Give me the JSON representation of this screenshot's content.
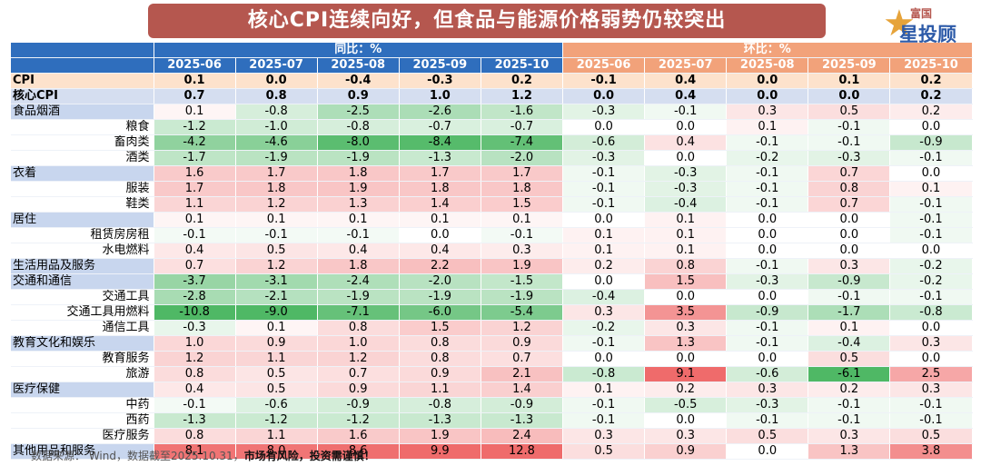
{
  "title": "核心CPI连续向好，但食品与能源价格弱势仍较突出",
  "logo": {
    "top": "富国",
    "bottom": "星投顾"
  },
  "footer": {
    "source": "数据来源： Wind，数据截至2025.10.31，",
    "warning": "市场有风险，投资需谨慎！"
  },
  "colors": {
    "title_bg": "#b5574f",
    "yoy_header": "#2f6ebd",
    "mom_header": "#f2a27a",
    "positive": "#ef6b6b",
    "negative": "#4fb865"
  },
  "chart_data": {
    "type": "table",
    "groups": [
      "同比：%",
      "环比：%"
    ],
    "columns": [
      "2025-06",
      "2025-07",
      "2025-08",
      "2025-09",
      "2025-10"
    ],
    "rows": [
      {
        "label": "CPI",
        "kind": "summary1",
        "yoy": [
          "0.1",
          "0.0",
          "-0.4",
          "-0.3",
          "0.2"
        ],
        "mom": [
          "-0.1",
          "0.4",
          "0.0",
          "0.1",
          "0.2"
        ]
      },
      {
        "label": "核心CPI",
        "kind": "summary2",
        "yoy": [
          "0.7",
          "0.8",
          "0.9",
          "1.0",
          "1.2"
        ],
        "mom": [
          "0.0",
          "0.4",
          "0.0",
          "0.0",
          "0.2"
        ]
      },
      {
        "label": "食品烟酒",
        "kind": "cat",
        "yoy": [
          "0.1",
          "-0.8",
          "-2.5",
          "-2.6",
          "-1.6"
        ],
        "mom": [
          "-0.3",
          "-0.1",
          "0.3",
          "0.5",
          "0.2"
        ]
      },
      {
        "label": "粮食",
        "kind": "sub",
        "yoy": [
          "-1.2",
          "-1.0",
          "-0.8",
          "-0.7",
          "-0.7"
        ],
        "mom": [
          "0.0",
          "0.0",
          "0.1",
          "-0.1",
          "0.0"
        ]
      },
      {
        "label": "畜肉类",
        "kind": "sub",
        "yoy": [
          "-4.2",
          "-4.6",
          "-8.0",
          "-8.4",
          "-7.4"
        ],
        "mom": [
          "-0.6",
          "0.4",
          "-0.1",
          "-0.1",
          "-0.9"
        ]
      },
      {
        "label": "酒类",
        "kind": "sub",
        "yoy": [
          "-1.7",
          "-1.9",
          "-1.9",
          "-1.3",
          "-2.0"
        ],
        "mom": [
          "-0.3",
          "0.0",
          "-0.2",
          "-0.3",
          "-0.1"
        ]
      },
      {
        "label": "衣着",
        "kind": "cat",
        "yoy": [
          "1.6",
          "1.7",
          "1.8",
          "1.7",
          "1.7"
        ],
        "mom": [
          "-0.1",
          "-0.3",
          "-0.1",
          "0.7",
          "0.0"
        ]
      },
      {
        "label": "服装",
        "kind": "sub",
        "yoy": [
          "1.7",
          "1.8",
          "1.9",
          "1.8",
          "1.8"
        ],
        "mom": [
          "-0.1",
          "-0.3",
          "-0.1",
          "0.8",
          "0.1"
        ]
      },
      {
        "label": "鞋类",
        "kind": "sub",
        "yoy": [
          "1.1",
          "1.2",
          "1.3",
          "1.4",
          "1.5"
        ],
        "mom": [
          "-0.1",
          "-0.4",
          "-0.1",
          "0.7",
          "-0.1"
        ]
      },
      {
        "label": "居住",
        "kind": "cat",
        "yoy": [
          "0.1",
          "0.1",
          "0.1",
          "0.1",
          "0.1"
        ],
        "mom": [
          "0.0",
          "0.1",
          "0.0",
          "0.0",
          "-0.1"
        ]
      },
      {
        "label": "租赁房房租",
        "kind": "sub",
        "yoy": [
          "-0.1",
          "-0.1",
          "-0.1",
          "0.0",
          "-0.1"
        ],
        "mom": [
          "0.1",
          "0.1",
          "0.0",
          "0.0",
          "-0.1"
        ]
      },
      {
        "label": "水电燃料",
        "kind": "sub",
        "yoy": [
          "0.4",
          "0.5",
          "0.4",
          "0.4",
          "0.3"
        ],
        "mom": [
          "0.1",
          "0.1",
          "0.0",
          "0.0",
          "0.0"
        ]
      },
      {
        "label": "生活用品及服务",
        "kind": "cat",
        "yoy": [
          "0.7",
          "1.2",
          "1.8",
          "2.2",
          "1.9"
        ],
        "mom": [
          "0.2",
          "0.8",
          "-0.1",
          "0.3",
          "-0.2"
        ]
      },
      {
        "label": "交通和通信",
        "kind": "cat",
        "yoy": [
          "-3.7",
          "-3.1",
          "-2.4",
          "-2.0",
          "-1.5"
        ],
        "mom": [
          "0.0",
          "1.5",
          "-0.3",
          "-0.9",
          "-0.2"
        ]
      },
      {
        "label": "交通工具",
        "kind": "sub",
        "yoy": [
          "-2.8",
          "-2.1",
          "-1.9",
          "-1.9",
          "-1.9"
        ],
        "mom": [
          "-0.4",
          "0.0",
          "0.0",
          "-0.1",
          "-0.1"
        ]
      },
      {
        "label": "交通工具用燃料",
        "kind": "sub",
        "yoy": [
          "-10.8",
          "-9.0",
          "-7.1",
          "-6.0",
          "-5.4"
        ],
        "mom": [
          "0.3",
          "3.5",
          "-0.9",
          "-1.7",
          "-0.8"
        ]
      },
      {
        "label": "通信工具",
        "kind": "sub",
        "yoy": [
          "-0.3",
          "0.1",
          "0.8",
          "1.5",
          "1.2"
        ],
        "mom": [
          "-0.2",
          "0.3",
          "-0.1",
          "0.1",
          "0.0"
        ]
      },
      {
        "label": "教育文化和娱乐",
        "kind": "cat",
        "yoy": [
          "1.0",
          "0.9",
          "1.0",
          "0.8",
          "0.9"
        ],
        "mom": [
          "-0.1",
          "1.3",
          "-0.1",
          "-0.4",
          "0.3"
        ]
      },
      {
        "label": "教育服务",
        "kind": "sub",
        "yoy": [
          "1.2",
          "1.1",
          "1.2",
          "0.8",
          "0.7"
        ],
        "mom": [
          "0.0",
          "0.0",
          "0.0",
          "0.5",
          "0.0"
        ]
      },
      {
        "label": "旅游",
        "kind": "sub",
        "yoy": [
          "0.8",
          "0.5",
          "0.7",
          "0.9",
          "2.1"
        ],
        "mom": [
          "-0.8",
          "9.1",
          "-0.6",
          "-6.1",
          "2.5"
        ]
      },
      {
        "label": "医疗保健",
        "kind": "cat",
        "yoy": [
          "0.4",
          "0.5",
          "0.9",
          "1.1",
          "1.4"
        ],
        "mom": [
          "0.1",
          "0.2",
          "0.3",
          "0.2",
          "0.3"
        ]
      },
      {
        "label": "中药",
        "kind": "sub",
        "yoy": [
          "-0.1",
          "-0.6",
          "-0.9",
          "-0.8",
          "-0.9"
        ],
        "mom": [
          "-0.1",
          "-0.5",
          "-0.3",
          "-0.1",
          "-0.1"
        ]
      },
      {
        "label": "西药",
        "kind": "sub",
        "yoy": [
          "-1.3",
          "-1.2",
          "-1.2",
          "-1.3",
          "-1.3"
        ],
        "mom": [
          "-0.1",
          "0.0",
          "-0.1",
          "-0.1",
          "-0.1"
        ]
      },
      {
        "label": "医疗服务",
        "kind": "sub",
        "yoy": [
          "0.8",
          "1.1",
          "1.6",
          "1.9",
          "2.4"
        ],
        "mom": [
          "0.3",
          "0.3",
          "0.5",
          "0.3",
          "0.5"
        ]
      },
      {
        "label": "其他用品和服务",
        "kind": "cat",
        "yoy": [
          "8.1",
          "8.0",
          "8.6",
          "9.9",
          "12.8"
        ],
        "mom": [
          "0.5",
          "0.9",
          "0.0",
          "1.3",
          "3.8"
        ]
      }
    ]
  }
}
